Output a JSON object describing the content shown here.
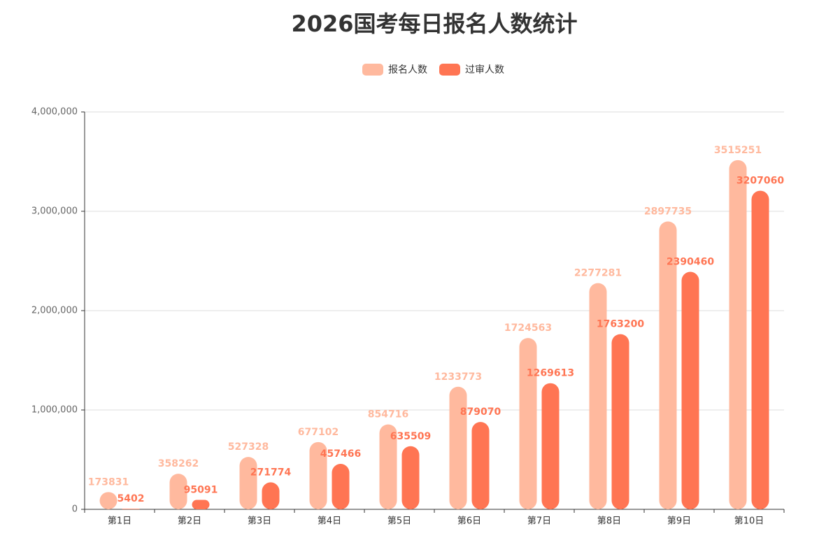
{
  "chart_data": {
    "type": "bar",
    "title": "2026国考每日报名人数统计",
    "categories": [
      "第1日",
      "第2日",
      "第3日",
      "第4日",
      "第5日",
      "第6日",
      "第7日",
      "第8日",
      "第9日",
      "第10日"
    ],
    "series": [
      {
        "name": "报名人数",
        "color": "#ffb99e",
        "values": [
          173831,
          358262,
          527328,
          677102,
          854716,
          1233773,
          1724563,
          2277281,
          2897735,
          3515251
        ]
      },
      {
        "name": "过审人数",
        "color": "#ff7553",
        "values": [
          5402,
          95091,
          271774,
          457466,
          635509,
          879070,
          1269613,
          1763200,
          2390460,
          3207060
        ]
      }
    ],
    "ylim": [
      0,
      4000000
    ],
    "yticks": [
      0,
      {
        "value": 1000000,
        "label": "1,000,000"
      },
      {
        "value": 2000000,
        "label": "2,000,000"
      },
      {
        "value": 3000000,
        "label": "3,000,000"
      },
      {
        "value": 4000000,
        "label": "4,000,000"
      }
    ],
    "grid": true
  }
}
